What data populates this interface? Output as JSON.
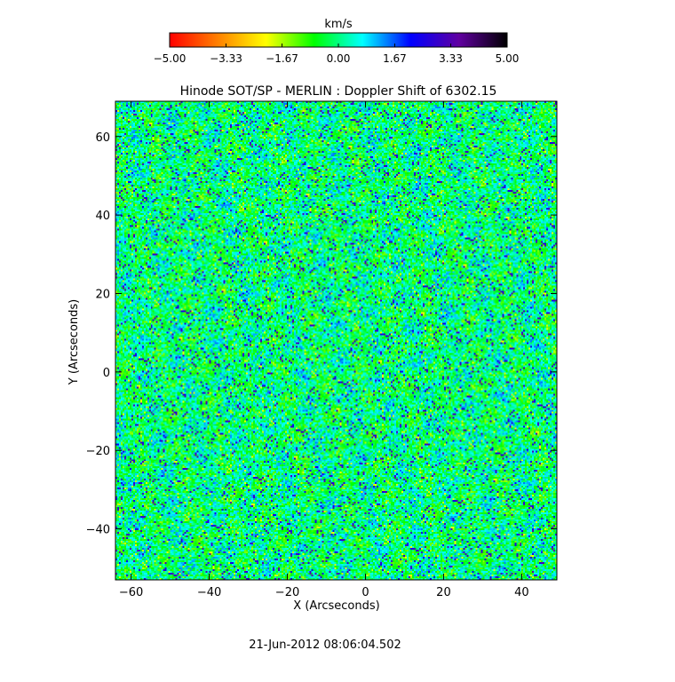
{
  "chart_data": {
    "type": "heatmap",
    "title": "Hinode SOT/SP - MERLIN : Doppler Shift of 6302.15",
    "xlabel": "X (Arcseconds)",
    "ylabel": "Y (Arcseconds)",
    "xlim": [
      -64,
      49
    ],
    "ylim": [
      -53,
      69
    ],
    "x_ticks": [
      -60,
      -40,
      -20,
      0,
      20,
      40
    ],
    "y_ticks": [
      -40,
      -20,
      0,
      20,
      40,
      60
    ],
    "x_tick_labels": [
      "−60",
      "−40",
      "−20",
      "0",
      "20",
      "40"
    ],
    "y_tick_labels": [
      "−40",
      "−20",
      "0",
      "20",
      "40",
      "60"
    ],
    "colorbar": {
      "label": "km/s",
      "range": [
        -5.0,
        5.0
      ],
      "ticks": [
        -5.0,
        -3.33,
        -1.67,
        0.0,
        1.67,
        3.33,
        5.0
      ],
      "tick_labels": [
        "−5.00",
        "−3.33",
        "−1.67",
        "0.00",
        "1.67",
        "3.33",
        "5.00"
      ],
      "colormap": [
        "#ff0000",
        "#ff8000",
        "#ffff00",
        "#00ff00",
        "#00ffff",
        "#0000ff",
        "#6000a0",
        "#000000"
      ]
    },
    "grid": false,
    "value_description": "Doppler velocity field with values mostly between about -1.67 and 1.67 km/s"
  },
  "footer": {
    "timestamp": "21-Jun-2012 08:06:04.502"
  }
}
